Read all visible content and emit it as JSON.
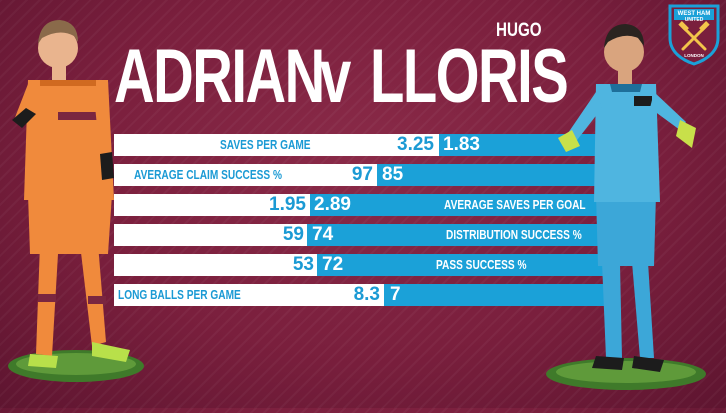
{
  "headline": {
    "left_name": "ADRIAN",
    "versus": "v",
    "right_name": "LLORIS",
    "right_first_name": "HUGO"
  },
  "badge": {
    "text_top": "WEST HAM",
    "text_mid": "UNITED",
    "text_bottom": "LONDON"
  },
  "stats": [
    {
      "label": "SAVES PER GAME",
      "adrian": "3.25",
      "lloris": "1.83"
    },
    {
      "label": "AVERAGE CLAIM SUCCESS %",
      "adrian": "97",
      "lloris": "85"
    },
    {
      "label": "AVERAGE SAVES PER GOAL",
      "adrian": "1.95",
      "lloris": "2.89"
    },
    {
      "label": "DISTRIBUTION SUCCESS %",
      "adrian": "59",
      "lloris": "74"
    },
    {
      "label": "PASS SUCCESS %",
      "adrian": "53",
      "lloris": "72"
    },
    {
      "label": "LONG BALLS PER GAME",
      "adrian": "8.3",
      "lloris": "7"
    }
  ],
  "colors": {
    "background": "#7a1f3d",
    "bar_blue": "#1ba1d8",
    "bar_white": "#ffffff",
    "claret": "#7a2640",
    "orange_kit": "#f08a3c",
    "spurs_blue": "#3ca7d8"
  },
  "icons": {
    "badge": "west-ham-crest-icon",
    "left_player": "goalkeeper-adrian-figure",
    "right_player": "goalkeeper-lloris-figure"
  }
}
